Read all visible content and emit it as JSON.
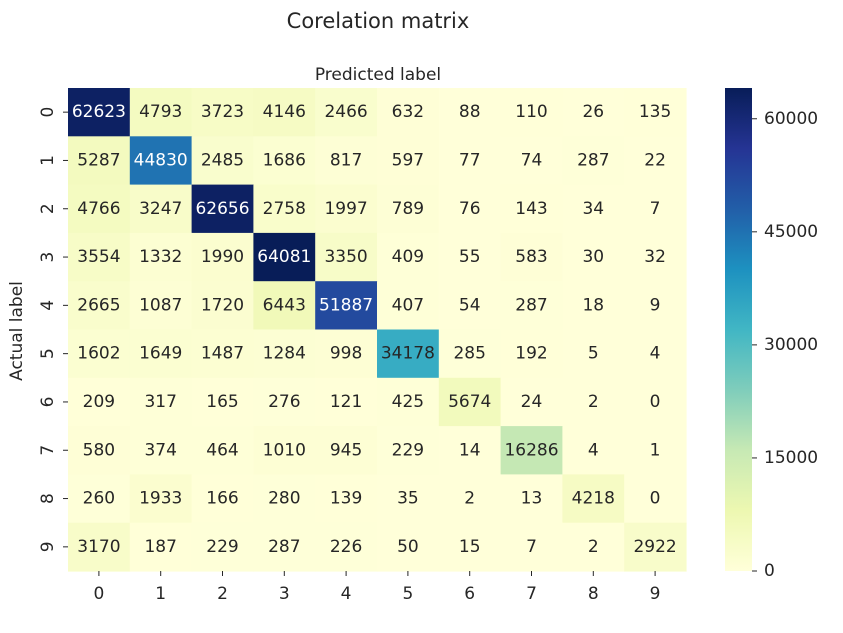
{
  "chart_data": {
    "type": "heatmap",
    "title": "Corelation matrix",
    "xlabel": "Predicted label",
    "ylabel": "Actual label",
    "x_ticks": [
      "0",
      "1",
      "2",
      "3",
      "4",
      "5",
      "6",
      "7",
      "8",
      "9"
    ],
    "y_ticks": [
      "0",
      "1",
      "2",
      "3",
      "4",
      "5",
      "6",
      "7",
      "8",
      "9"
    ],
    "values": [
      [
        62623,
        4793,
        3723,
        4146,
        2466,
        632,
        88,
        110,
        26,
        135
      ],
      [
        5287,
        44830,
        2485,
        1686,
        817,
        597,
        77,
        74,
        287,
        22
      ],
      [
        4766,
        3247,
        62656,
        2758,
        1997,
        789,
        76,
        143,
        34,
        7
      ],
      [
        3554,
        1332,
        1990,
        64081,
        3350,
        409,
        55,
        583,
        30,
        32
      ],
      [
        2665,
        1087,
        1720,
        6443,
        51887,
        407,
        54,
        287,
        18,
        9
      ],
      [
        1602,
        1649,
        1487,
        1284,
        998,
        34178,
        285,
        192,
        5,
        4
      ],
      [
        209,
        317,
        165,
        276,
        121,
        425,
        5674,
        24,
        2,
        0
      ],
      [
        580,
        374,
        464,
        1010,
        945,
        229,
        14,
        16286,
        4,
        1
      ],
      [
        260,
        1933,
        166,
        280,
        139,
        35,
        2,
        13,
        4218,
        0
      ],
      [
        3170,
        187,
        229,
        287,
        226,
        50,
        15,
        7,
        2,
        2922
      ]
    ],
    "colorbar": {
      "ticks": [
        0,
        15000,
        30000,
        45000,
        60000
      ],
      "tick_labels": [
        "0",
        "15000",
        "30000",
        "45000",
        "60000"
      ],
      "vmin": 0,
      "vmax": 64081
    },
    "colormap": "YlGnBu",
    "colormap_stops": [
      "#ffffd9",
      "#edf8b1",
      "#c7e9b4",
      "#7fcdbb",
      "#41b6c4",
      "#1d91c0",
      "#225ea8",
      "#253494",
      "#081d58"
    ],
    "grid": false
  }
}
